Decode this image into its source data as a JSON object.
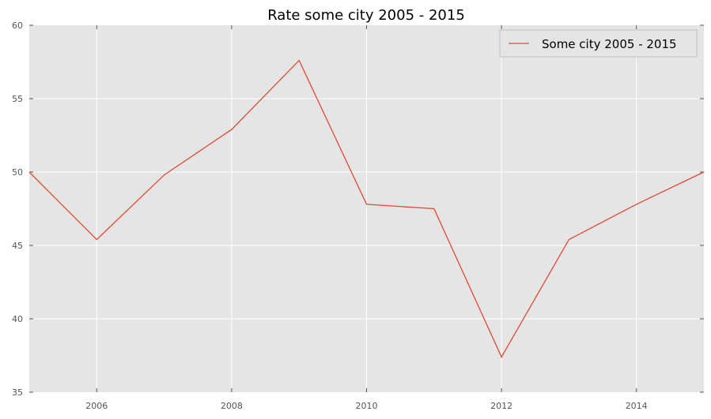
{
  "chart_data": {
    "type": "line",
    "title": "Rate some city 2005 - 2015",
    "xlabel": "",
    "ylabel": "",
    "xlim": [
      2005,
      2015
    ],
    "ylim": [
      35,
      60
    ],
    "x_ticks": [
      2006,
      2008,
      2010,
      2012,
      2014
    ],
    "y_ticks": [
      35,
      40,
      45,
      50,
      55,
      60
    ],
    "grid": true,
    "legend_position": "top-right",
    "series": [
      {
        "name": "Some city 2005 - 2015",
        "color": "#E24A33",
        "x": [
          2005,
          2006,
          2007,
          2008,
          2009,
          2010,
          2011,
          2012,
          2013,
          2014,
          2015
        ],
        "values": [
          50.0,
          45.4,
          49.8,
          52.9,
          57.6,
          47.8,
          47.5,
          37.4,
          45.4,
          47.8,
          50.0
        ]
      }
    ]
  }
}
